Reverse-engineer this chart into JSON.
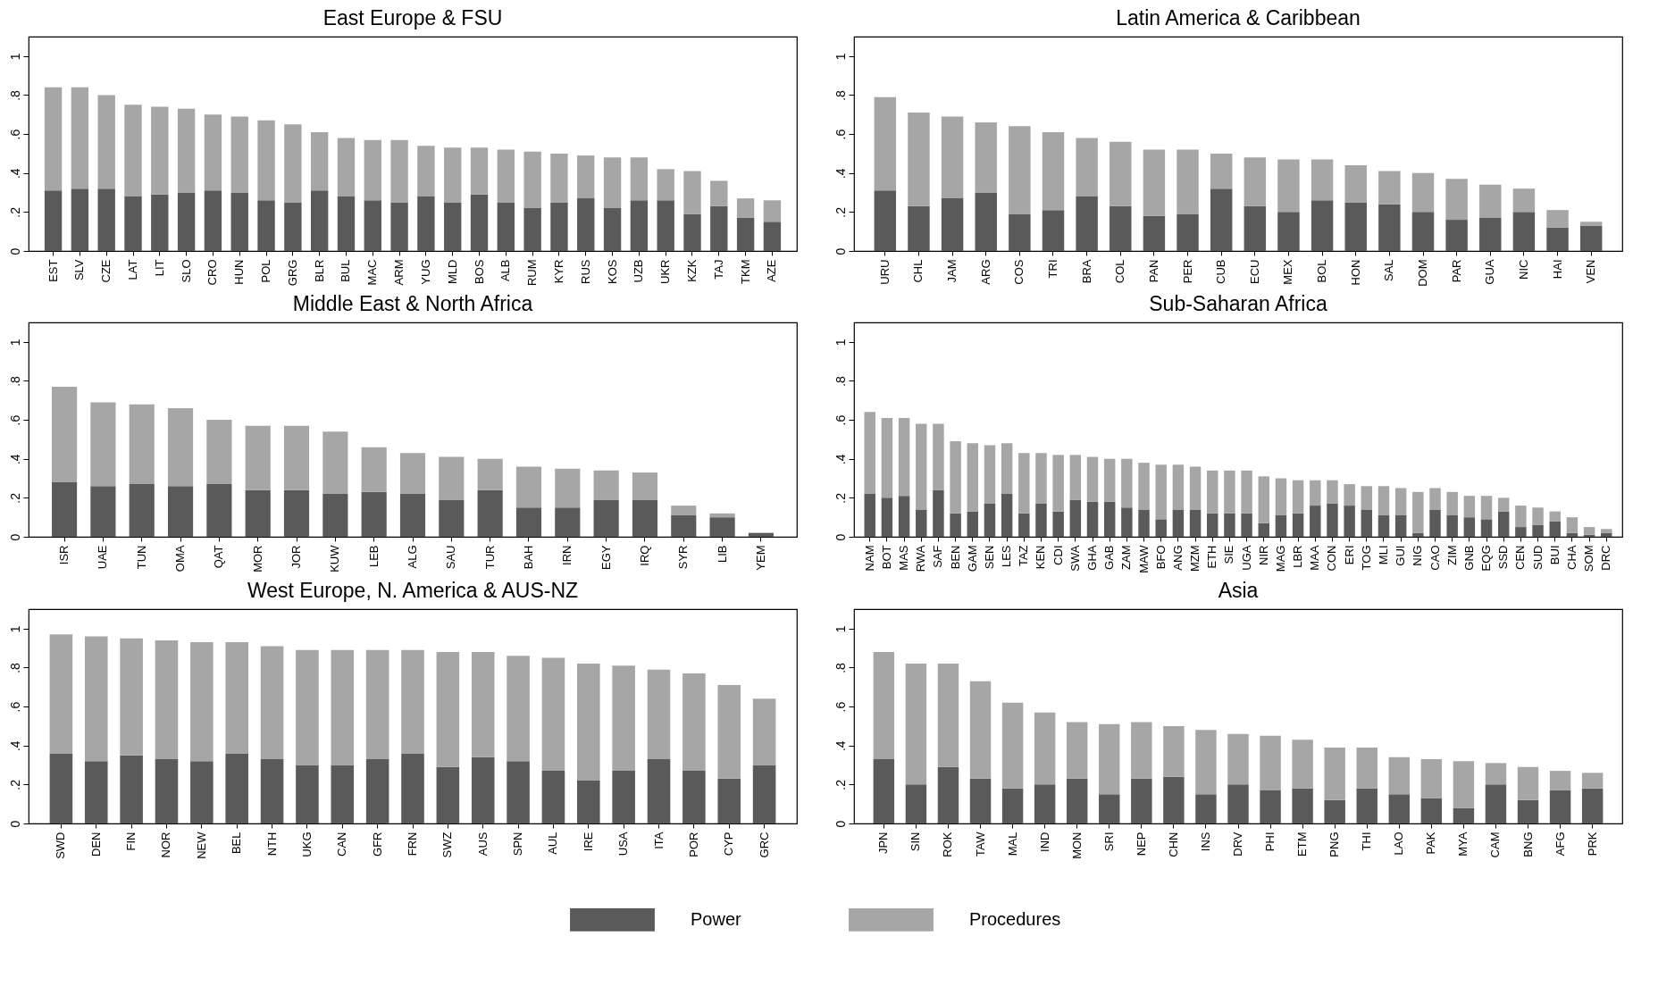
{
  "chart_data": [
    {
      "type": "bar",
      "title": "East Europe & FSU",
      "stacked": true,
      "legend": "bottom",
      "ylim": [
        0,
        1.1
      ],
      "yticks": [
        {
          "value": 0,
          "label": "0"
        },
        {
          "value": 0.2,
          "label": ".2"
        },
        {
          "value": 0.4,
          "label": ".4"
        },
        {
          "value": 0.6,
          "label": ".6"
        },
        {
          "value": 0.8,
          "label": ".8"
        },
        {
          "value": 1,
          "label": "1"
        }
      ],
      "categories": [
        "EST",
        "SLV",
        "CZE",
        "LAT",
        "LIT",
        "SLO",
        "CRO",
        "HUN",
        "POL",
        "GRG",
        "BLR",
        "BUL",
        "MAC",
        "ARM",
        "YUG",
        "MLD",
        "BOS",
        "ALB",
        "RUM",
        "KYR",
        "RUS",
        "KOS",
        "UZB",
        "UKR",
        "KZK",
        "TAJ",
        "TKM",
        "AZE"
      ],
      "series": [
        {
          "name": "Power",
          "color": "#5a5a5a",
          "values": [
            0.31,
            0.32,
            0.32,
            0.28,
            0.29,
            0.3,
            0.31,
            0.3,
            0.26,
            0.25,
            0.31,
            0.28,
            0.26,
            0.25,
            0.28,
            0.25,
            0.29,
            0.25,
            0.22,
            0.25,
            0.27,
            0.22,
            0.26,
            0.26,
            0.19,
            0.23,
            0.17,
            0.15
          ]
        },
        {
          "name": "Procedures",
          "color": "#a6a6a6",
          "values": [
            0.53,
            0.52,
            0.48,
            0.47,
            0.45,
            0.43,
            0.39,
            0.39,
            0.41,
            0.4,
            0.3,
            0.3,
            0.31,
            0.32,
            0.26,
            0.28,
            0.24,
            0.27,
            0.29,
            0.25,
            0.22,
            0.26,
            0.22,
            0.16,
            0.22,
            0.13,
            0.1,
            0.11
          ]
        }
      ]
    },
    {
      "type": "bar",
      "title": "Latin America & Caribbean",
      "stacked": true,
      "ylim": [
        0,
        1.1
      ],
      "yticks": [
        {
          "value": 0,
          "label": "0"
        },
        {
          "value": 0.2,
          "label": ".2"
        },
        {
          "value": 0.4,
          "label": ".4"
        },
        {
          "value": 0.6,
          "label": ".6"
        },
        {
          "value": 0.8,
          "label": ".8"
        },
        {
          "value": 1,
          "label": "1"
        }
      ],
      "categories": [
        "URU",
        "CHL",
        "JAM",
        "ARG",
        "COS",
        "TRI",
        "BRA",
        "COL",
        "PAN",
        "PER",
        "CUB",
        "ECU",
        "MEX",
        "BOL",
        "HON",
        "SAL",
        "DOM",
        "PAR",
        "GUA",
        "NIC",
        "HAI",
        "VEN"
      ],
      "series": [
        {
          "color": "#5a5a5a",
          "values": [
            0.31,
            0.23,
            0.27,
            0.3,
            0.19,
            0.21,
            0.28,
            0.23,
            0.18,
            0.19,
            0.32,
            0.23,
            0.2,
            0.26,
            0.25,
            0.24,
            0.2,
            0.16,
            0.17,
            0.2,
            0.12,
            0.13
          ]
        },
        {
          "color": "#a6a6a6",
          "values": [
            0.48,
            0.48,
            0.42,
            0.36,
            0.45,
            0.4,
            0.3,
            0.33,
            0.34,
            0.33,
            0.18,
            0.25,
            0.27,
            0.21,
            0.19,
            0.17,
            0.2,
            0.21,
            0.17,
            0.12,
            0.09,
            0.02
          ]
        }
      ]
    },
    {
      "type": "bar",
      "title": "Middle East & North Africa",
      "stacked": true,
      "ylim": [
        0,
        1.1
      ],
      "yticks": [
        {
          "value": 0,
          "label": "0"
        },
        {
          "value": 0.2,
          "label": ".2"
        },
        {
          "value": 0.4,
          "label": ".4"
        },
        {
          "value": 0.6,
          "label": ".6"
        },
        {
          "value": 0.8,
          "label": ".8"
        },
        {
          "value": 1,
          "label": "1"
        }
      ],
      "categories": [
        "ISR",
        "UAE",
        "TUN",
        "OMA",
        "QAT",
        "MOR",
        "JOR",
        "KUW",
        "LEB",
        "ALG",
        "SAU",
        "TUR",
        "BAH",
        "IRN",
        "EGY",
        "IRQ",
        "SYR",
        "LIB",
        "YEM"
      ],
      "series": [
        {
          "color": "#5a5a5a",
          "values": [
            0.28,
            0.26,
            0.27,
            0.26,
            0.27,
            0.24,
            0.24,
            0.22,
            0.23,
            0.22,
            0.19,
            0.24,
            0.15,
            0.15,
            0.19,
            0.19,
            0.11,
            0.1,
            0.02
          ]
        },
        {
          "color": "#a6a6a6",
          "values": [
            0.49,
            0.43,
            0.41,
            0.4,
            0.33,
            0.33,
            0.33,
            0.32,
            0.23,
            0.21,
            0.22,
            0.16,
            0.21,
            0.2,
            0.15,
            0.14,
            0.05,
            0.02,
            0
          ]
        }
      ]
    },
    {
      "type": "bar",
      "title": "Sub-Saharan Africa",
      "stacked": true,
      "ylim": [
        0,
        1.1
      ],
      "yticks": [
        {
          "value": 0,
          "label": "0"
        },
        {
          "value": 0.2,
          "label": ".2"
        },
        {
          "value": 0.4,
          "label": ".4"
        },
        {
          "value": 0.6,
          "label": ".6"
        },
        {
          "value": 0.8,
          "label": ".8"
        },
        {
          "value": 1,
          "label": "1"
        }
      ],
      "categories": [
        "NAM",
        "BOT",
        "MAS",
        "RWA",
        "SAF",
        "BEN",
        "GAM",
        "SEN",
        "LES",
        "TAZ",
        "KEN",
        "CDI",
        "SWA",
        "GHA",
        "GAB",
        "ZAM",
        "MAW",
        "BFO",
        "ANG",
        "MZM",
        "ETH",
        "SIE",
        "UGA",
        "NIR",
        "MAG",
        "LBR",
        "MAA",
        "CON",
        "ERI",
        "TOG",
        "MLI",
        "GUI",
        "NIG",
        "CAO",
        "ZIM",
        "GNB",
        "EQG",
        "SSD",
        "CEN",
        "SUD",
        "BUI",
        "CHA",
        "SOM",
        "DRC"
      ],
      "series": [
        {
          "color": "#5a5a5a",
          "values": [
            0.22,
            0.2,
            0.21,
            0.14,
            0.24,
            0.12,
            0.13,
            0.17,
            0.22,
            0.12,
            0.17,
            0.13,
            0.19,
            0.18,
            0.18,
            0.15,
            0.14,
            0.09,
            0.14,
            0.14,
            0.12,
            0.12,
            0.12,
            0.07,
            0.11,
            0.12,
            0.16,
            0.17,
            0.16,
            0.14,
            0.11,
            0.11,
            0.02,
            0.14,
            0.11,
            0.1,
            0.09,
            0.13,
            0.05,
            0.06,
            0.08,
            0.02,
            0.01,
            0.02
          ]
        },
        {
          "color": "#a6a6a6",
          "values": [
            0.42,
            0.41,
            0.4,
            0.44,
            0.34,
            0.37,
            0.35,
            0.3,
            0.26,
            0.31,
            0.26,
            0.29,
            0.23,
            0.23,
            0.22,
            0.25,
            0.24,
            0.28,
            0.23,
            0.22,
            0.22,
            0.22,
            0.22,
            0.24,
            0.19,
            0.17,
            0.13,
            0.12,
            0.11,
            0.12,
            0.15,
            0.14,
            0.21,
            0.11,
            0.12,
            0.11,
            0.12,
            0.07,
            0.11,
            0.09,
            0.05,
            0.08,
            0.04,
            0.02
          ]
        }
      ]
    },
    {
      "type": "bar",
      "title": "West Europe, N. America & AUS-NZ",
      "stacked": true,
      "ylim": [
        0,
        1.1
      ],
      "yticks": [
        {
          "value": 0,
          "label": "0"
        },
        {
          "value": 0.2,
          "label": ".2"
        },
        {
          "value": 0.4,
          "label": ".4"
        },
        {
          "value": 0.6,
          "label": ".6"
        },
        {
          "value": 0.8,
          "label": ".8"
        },
        {
          "value": 1,
          "label": "1"
        }
      ],
      "categories": [
        "SWD",
        "DEN",
        "FIN",
        "NOR",
        "NEW",
        "BEL",
        "NTH",
        "UKG",
        "CAN",
        "GFR",
        "FRN",
        "SWZ",
        "AUS",
        "SPN",
        "AUL",
        "IRE",
        "USA",
        "ITA",
        "POR",
        "CYP",
        "GRC"
      ],
      "series": [
        {
          "color": "#5a5a5a",
          "values": [
            0.36,
            0.32,
            0.35,
            0.33,
            0.32,
            0.36,
            0.33,
            0.3,
            0.3,
            0.33,
            0.36,
            0.29,
            0.34,
            0.32,
            0.27,
            0.22,
            0.27,
            0.33,
            0.27,
            0.23,
            0.3
          ]
        },
        {
          "color": "#a6a6a6",
          "values": [
            0.61,
            0.64,
            0.6,
            0.61,
            0.61,
            0.57,
            0.58,
            0.59,
            0.59,
            0.56,
            0.53,
            0.59,
            0.54,
            0.54,
            0.58,
            0.6,
            0.54,
            0.46,
            0.5,
            0.48,
            0.34
          ]
        }
      ]
    },
    {
      "type": "bar",
      "title": "Asia",
      "stacked": true,
      "ylim": [
        0,
        1.1
      ],
      "yticks": [
        {
          "value": 0,
          "label": "0"
        },
        {
          "value": 0.2,
          "label": ".2"
        },
        {
          "value": 0.4,
          "label": ".4"
        },
        {
          "value": 0.6,
          "label": ".6"
        },
        {
          "value": 0.8,
          "label": ".8"
        },
        {
          "value": 1,
          "label": "1"
        }
      ],
      "categories": [
        "JPN",
        "SIN",
        "ROK",
        "TAW",
        "MAL",
        "IND",
        "MON",
        "SRI",
        "NEP",
        "CHN",
        "INS",
        "DRV",
        "PHI",
        "ETM",
        "PNG",
        "THI",
        "LAO",
        "PAK",
        "MYA",
        "CAM",
        "BNG",
        "AFG",
        "PRK"
      ],
      "series": [
        {
          "color": "#5a5a5a",
          "values": [
            0.33,
            0.2,
            0.29,
            0.23,
            0.18,
            0.2,
            0.23,
            0.15,
            0.23,
            0.24,
            0.15,
            0.2,
            0.17,
            0.18,
            0.12,
            0.18,
            0.15,
            0.13,
            0.08,
            0.2,
            0.12,
            0.17,
            0.18
          ]
        },
        {
          "color": "#a6a6a6",
          "values": [
            0.55,
            0.62,
            0.53,
            0.5,
            0.44,
            0.37,
            0.29,
            0.36,
            0.29,
            0.26,
            0.33,
            0.26,
            0.28,
            0.25,
            0.27,
            0.21,
            0.19,
            0.2,
            0.24,
            0.11,
            0.17,
            0.1,
            0.08
          ]
        }
      ]
    }
  ]
}
